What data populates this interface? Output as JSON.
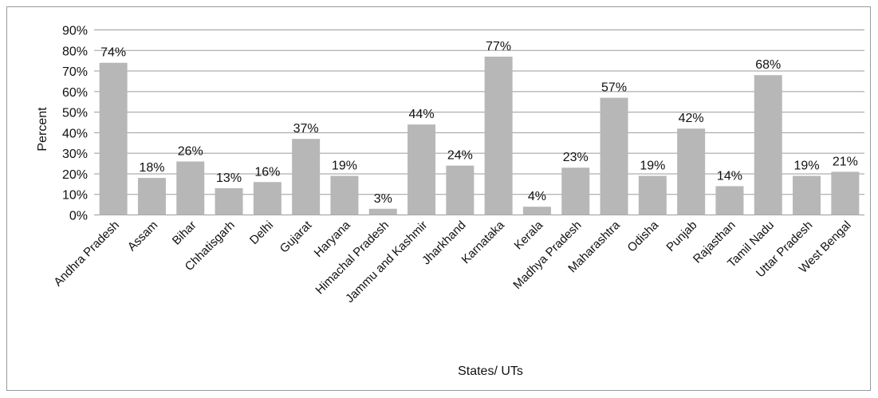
{
  "chart_data": {
    "type": "bar",
    "title": "",
    "xlabel": "States/ UTs",
    "ylabel": "Percent",
    "ylim": [
      0,
      90
    ],
    "ytick_step": 10,
    "ytick_suffix": "%",
    "grid": true,
    "legend": "none",
    "bar_color": "#b7b7b7",
    "categories": [
      "Andhra Pradesh",
      "Assam",
      "Bihar",
      "Chhatisgarh",
      "Delhi",
      "Gujarat",
      "Haryana",
      "Himachal Pradesh",
      "Jammu and Kashmir",
      "Jharkhand",
      "Karnataka",
      "Kerala",
      "Madhya Pradesh",
      "Maharashtra",
      "Odisha",
      "Punjab",
      "Rajasthan",
      "Tamil Nadu",
      "Uttar Pradesh",
      "West Bengal"
    ],
    "values": [
      74,
      18,
      26,
      13,
      16,
      37,
      19,
      3,
      44,
      24,
      77,
      4,
      23,
      57,
      19,
      42,
      14,
      68,
      19,
      21
    ],
    "data_labels": [
      "74%",
      "18%",
      "26%",
      "13%",
      "16%",
      "37%",
      "19%",
      "3%",
      "44%",
      "24%",
      "77%",
      "4%",
      "23%",
      "57%",
      "19%",
      "42%",
      "14%",
      "68%",
      "19%",
      "21%"
    ]
  }
}
